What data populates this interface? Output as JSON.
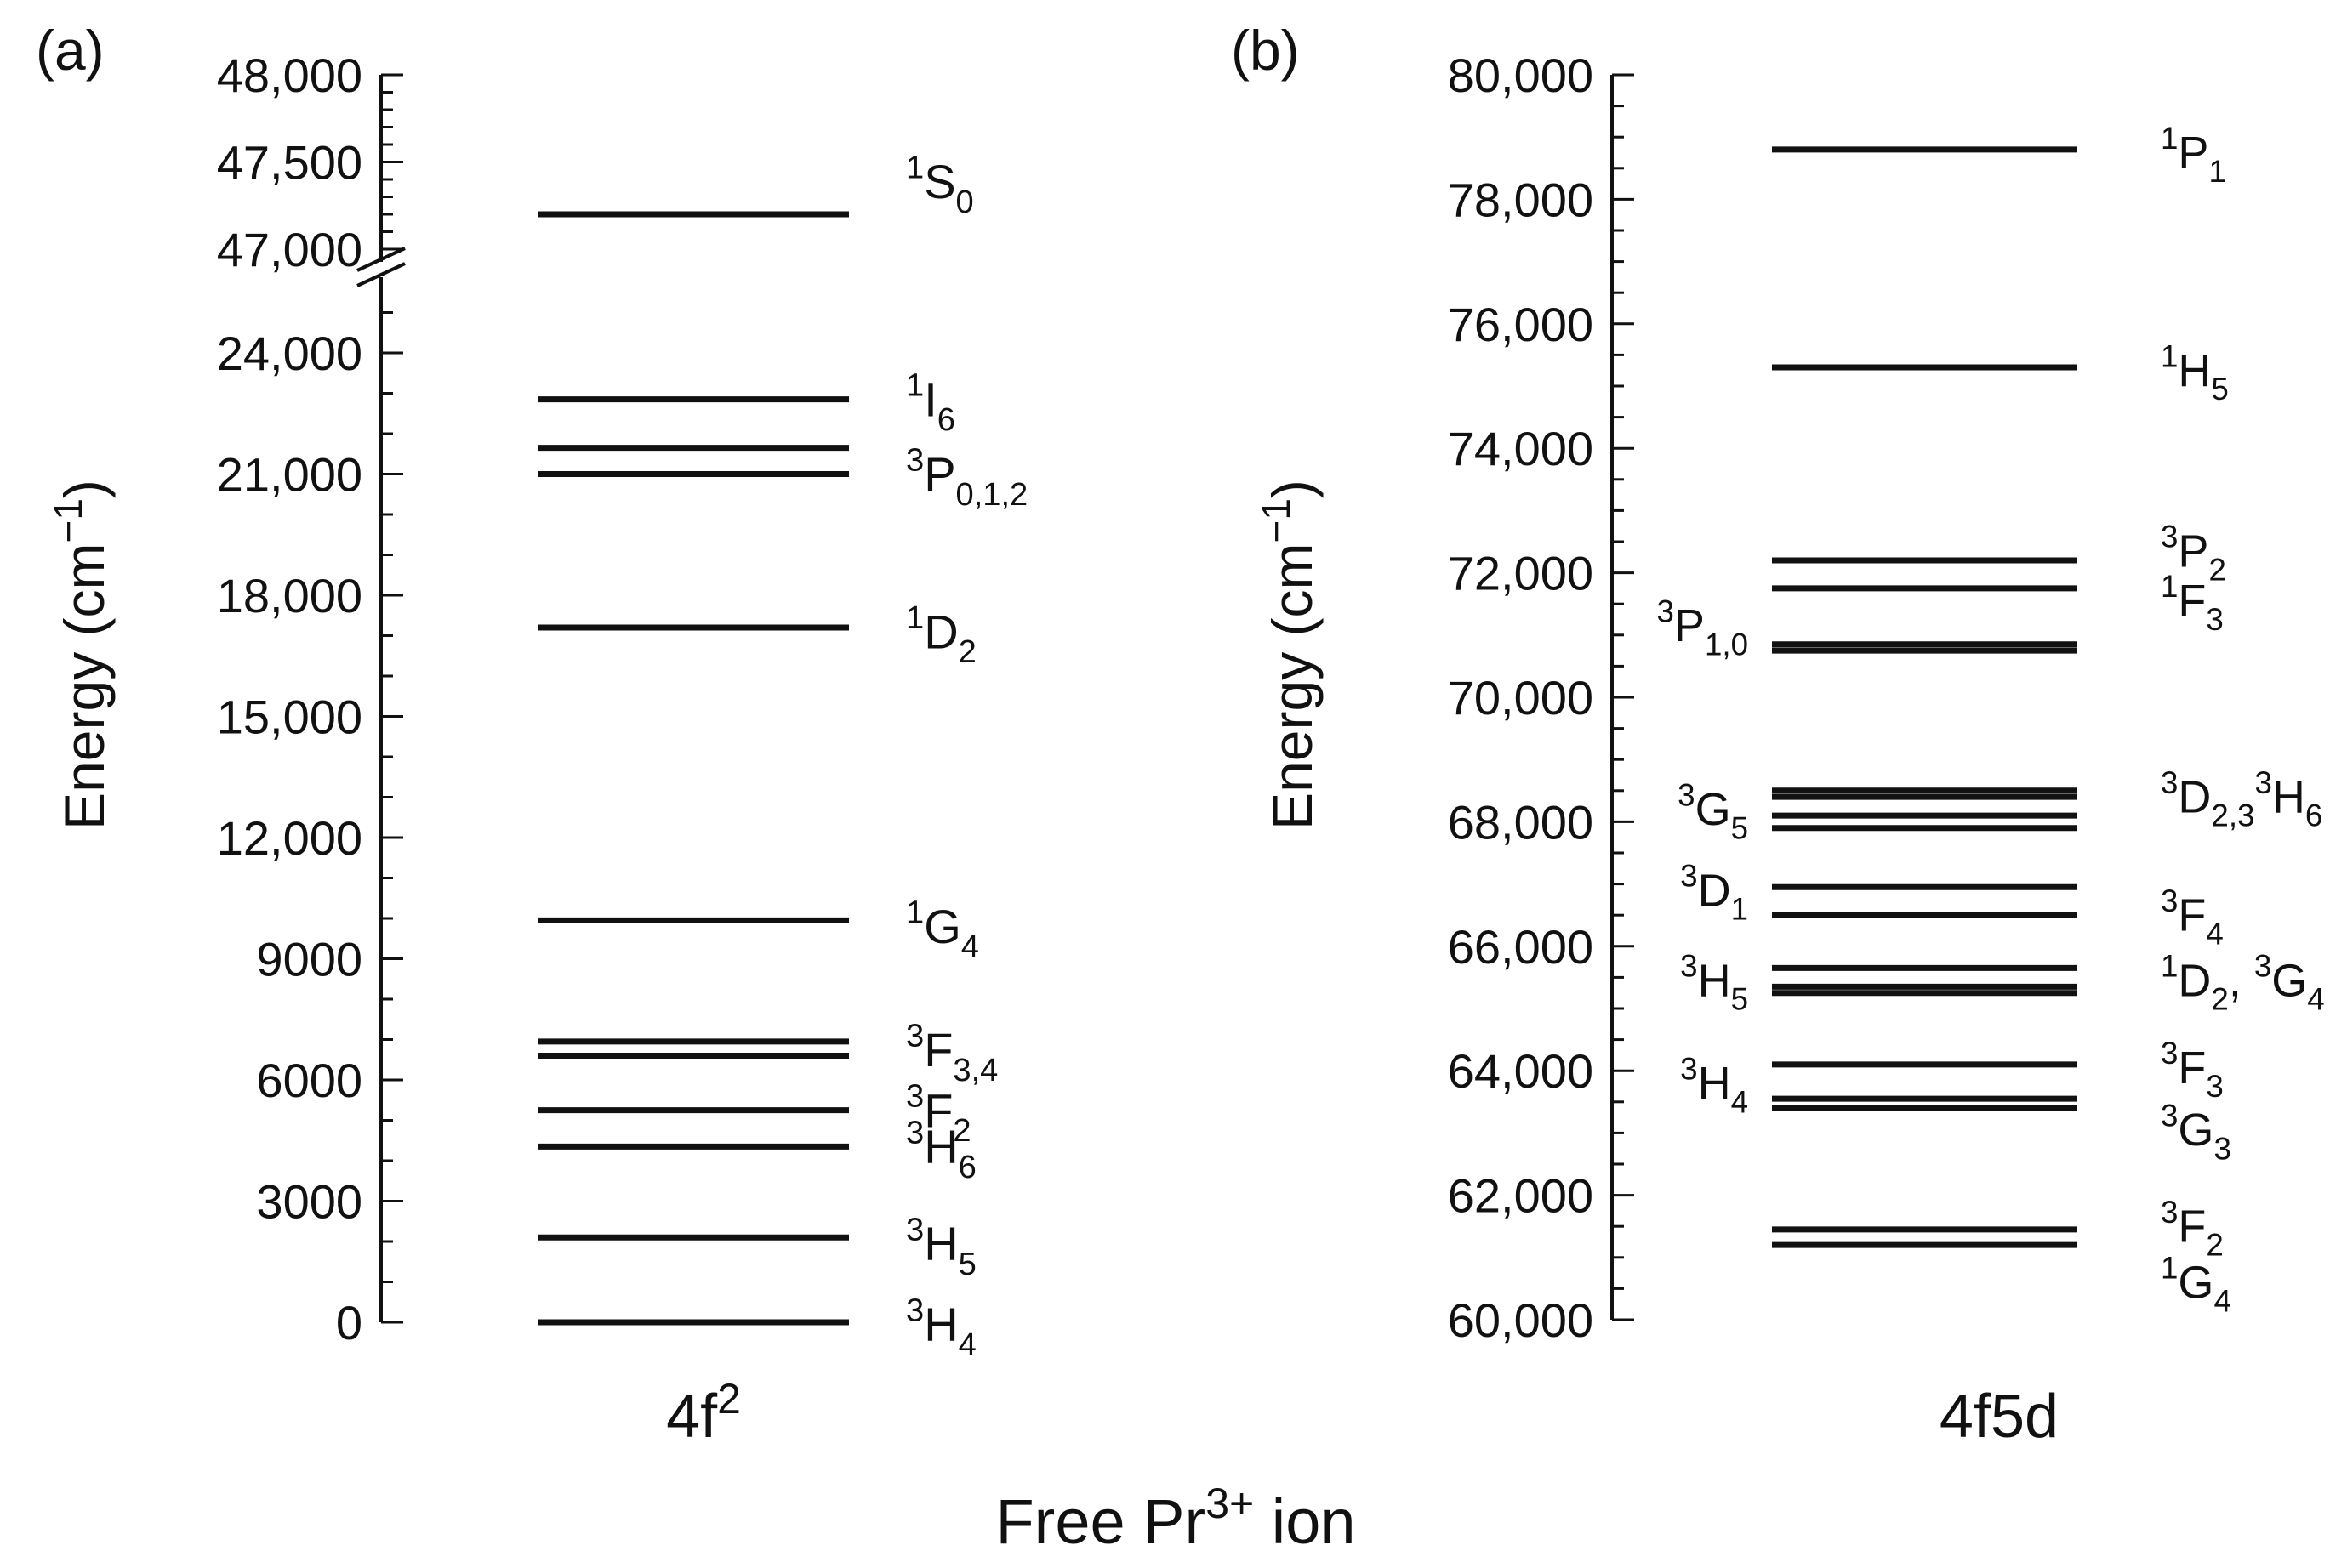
{
  "figure": {
    "supertitle_main": "Free Pr",
    "supertitle_sup": "3+",
    "supertitle_tail": " ion"
  },
  "chart_data": [
    {
      "type": "energy-level-diagram",
      "panel": "(a)",
      "ylabel": "Energy (cm",
      "ylabel_sup": "−1",
      "ylabel_close": ")",
      "xlabel": "4f",
      "xlabel_sup": "2",
      "axis_break": true,
      "upper_segment": {
        "ylim": [
          47000,
          48000
        ],
        "ticks": [
          47000,
          47500,
          48000
        ],
        "tick_labels": [
          "47,000",
          "47,500",
          "48,000"
        ]
      },
      "lower_segment": {
        "ylim": [
          0,
          25000
        ],
        "ticks": [
          0,
          3000,
          6000,
          9000,
          12000,
          15000,
          18000,
          21000,
          24000
        ],
        "tick_labels": [
          "0",
          "3000",
          "6000",
          "9000",
          "12,000",
          "15,000",
          "18,000",
          "21,000",
          "24,000"
        ]
      },
      "levels": [
        0,
        2100,
        4350,
        5250,
        6600,
        6950,
        9950,
        17200,
        21000,
        21650,
        22850,
        47200
      ],
      "labels": [
        {
          "sup": "1",
          "term": "S",
          "sub": "0",
          "energy": 47400
        },
        {
          "sup": "1",
          "term": "I",
          "sub": "6",
          "energy": 22900
        },
        {
          "sup": "3",
          "term": "P",
          "sub": "0,1,2",
          "energy": 21050
        },
        {
          "sup": "1",
          "term": "D",
          "sub": "2",
          "energy": 17150
        },
        {
          "sup": "1",
          "term": "G",
          "sub": "4",
          "energy": 9850
        },
        {
          "sup": "3",
          "term": "F",
          "sub": "3,4",
          "energy": 6800
        },
        {
          "sup": "3",
          "term": "F",
          "sub": "2",
          "energy": 5300
        },
        {
          "sup": "3",
          "term": "H",
          "sub": "6",
          "energy": 4400
        },
        {
          "sup": "3",
          "term": "H",
          "sub": "5",
          "energy": 2000
        },
        {
          "sup": "3",
          "term": "H",
          "sub": "4",
          "energy": 0
        }
      ]
    },
    {
      "type": "energy-level-diagram",
      "panel": "(b)",
      "ylabel": "Energy (cm",
      "ylabel_sup": "−1",
      "ylabel_close": ")",
      "xlabel": "4f5d",
      "ylim": [
        60000,
        80000
      ],
      "ticks": [
        60000,
        62000,
        64000,
        66000,
        68000,
        70000,
        72000,
        74000,
        76000,
        78000,
        80000
      ],
      "tick_labels": [
        "60,000",
        "62,000",
        "64,000",
        "66,000",
        "68,000",
        "70,000",
        "72,000",
        "74,000",
        "76,000",
        "78,000",
        "80,000"
      ],
      "levels": [
        61200,
        61450,
        63400,
        63550,
        64100,
        65250,
        65350,
        65650,
        66500,
        66950,
        67900,
        68100,
        68400,
        68500,
        70750,
        70850,
        71750,
        72200,
        75300,
        78800
      ],
      "labels_right": [
        {
          "sup": "1",
          "term": "P",
          "sub": "1",
          "energy": 78800
        },
        {
          "sup": "1",
          "term": "H",
          "sub": "5",
          "energy": 75300
        },
        {
          "sup": "3",
          "term": "P",
          "sub": "2",
          "energy": 72400
        },
        {
          "sup": "1",
          "term": "F",
          "sub": "3",
          "energy": 71600
        },
        {
          "sup": "3",
          "term": "D",
          "sub": "2,3",
          "sup2": "3",
          "term2": "H",
          "sub2": "6",
          "energy": 68450
        },
        {
          "sup": "3",
          "term": "F",
          "sub": "4",
          "energy": 66550
        },
        {
          "sup": "1",
          "term": "D",
          "sub": "2",
          "tail": ", ",
          "sup2": "3",
          "term2": "G",
          "sub2": "4",
          "energy": 65500
        },
        {
          "sup": "3",
          "term": "F",
          "sub": "3",
          "energy": 64100
        },
        {
          "sup": "3",
          "term": "G",
          "sub": "3",
          "energy": 63100
        },
        {
          "sup": "3",
          "term": "F",
          "sub": "2",
          "energy": 61550
        },
        {
          "sup": "1",
          "term": "G",
          "sub": "4",
          "energy": 60650
        }
      ],
      "labels_left": [
        {
          "sup": "3",
          "term": "P",
          "sub": "1,0",
          "energy": 71200
        },
        {
          "sup": "3",
          "term": "G",
          "sub": "5",
          "energy": 68250
        },
        {
          "sup": "3",
          "term": "D",
          "sub": "1",
          "energy": 66950
        },
        {
          "sup": "3",
          "term": "H",
          "sub": "5",
          "energy": 65500
        },
        {
          "sup": "3",
          "term": "H",
          "sub": "4",
          "energy": 63850
        }
      ]
    }
  ]
}
